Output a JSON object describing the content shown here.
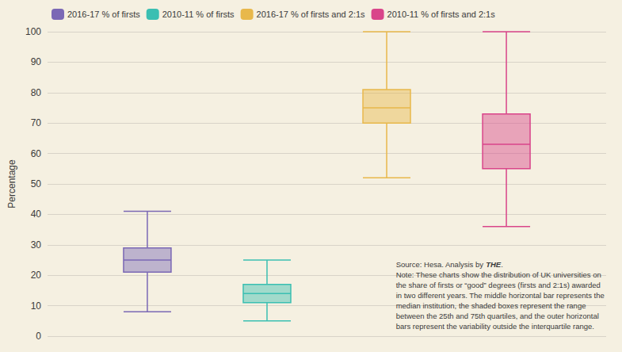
{
  "chart_data": {
    "type": "boxplot",
    "series": [
      {
        "name": "2016-17 % of firsts",
        "color": "#7B68B5",
        "whisker_low": 8,
        "q1": 21,
        "median": 25,
        "q3": 29,
        "whisker_high": 41
      },
      {
        "name": "2010-11 % of firsts",
        "color": "#3BBFB2",
        "whisker_low": 5,
        "q1": 11,
        "median": 14,
        "q3": 17,
        "whisker_high": 25
      },
      {
        "name": "2016-17 % of firsts and 2:1s",
        "color": "#E8B84B",
        "whisker_low": 52,
        "q1": 70,
        "median": 75,
        "q3": 81,
        "whisker_high": 100
      },
      {
        "name": "2010-11 % of firsts and 2:1s",
        "color": "#D9458A",
        "whisker_low": 36,
        "q1": 55,
        "median": 63,
        "q3": 73,
        "whisker_high": 100
      }
    ],
    "ylabel": "Percentage",
    "ylim": [
      0,
      100
    ],
    "yticks": [
      0,
      10,
      20,
      30,
      40,
      50,
      60,
      70,
      80,
      90,
      100
    ],
    "grid": true,
    "legend": "upper left",
    "tick_labels": "y",
    "annotations": [
      "Source: Hesa. Analysis by THE.",
      "Note: These charts show the distribution of UK universities on",
      "the share of firsts or “good” degrees (firsts and 2:1s) awarded",
      "in two different years. The middle horizontal bar represents the",
      "median institution, the shaded boxes represent the range",
      "between the 25th and 75th quartiles, and the outer horizontal",
      "bars represent the variability outside the interquartile range."
    ]
  }
}
